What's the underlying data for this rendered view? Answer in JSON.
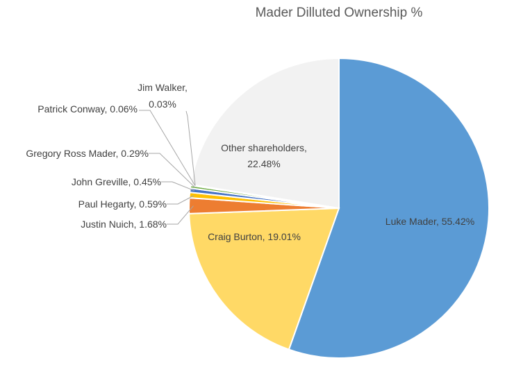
{
  "chart_data": {
    "type": "pie",
    "title": "Mader Dilluted Ownership %",
    "slices": [
      {
        "label": "Luke Mader",
        "value": 55.42,
        "display": "55.42%",
        "color": "#5b9bd5"
      },
      {
        "label": "Craig Burton",
        "value": 19.01,
        "display": "19.01%",
        "color": "#ffd966"
      },
      {
        "label": "Justin Nuich",
        "value": 1.68,
        "display": "1.68%",
        "color": "#ed7d31"
      },
      {
        "label": "Paul Hegarty",
        "value": 0.59,
        "display": "0.59%",
        "color": "#ffc000"
      },
      {
        "label": "John Greville",
        "value": 0.45,
        "display": "0.45%",
        "color": "#4472c4"
      },
      {
        "label": "Gregory Ross Mader",
        "value": 0.29,
        "display": "0.29%",
        "color": "#70ad47"
      },
      {
        "label": "Patrick Conway",
        "value": 0.06,
        "display": "0.06%",
        "color": "#264478"
      },
      {
        "label": "Jim Walker",
        "value": 0.03,
        "display": "0.03%",
        "color": "#9e480e"
      },
      {
        "label": "Other shareholders",
        "value": 22.48,
        "display": "22.48%",
        "color": "#f2f2f2"
      }
    ],
    "legend": "none",
    "data_labels": "category-and-value"
  }
}
